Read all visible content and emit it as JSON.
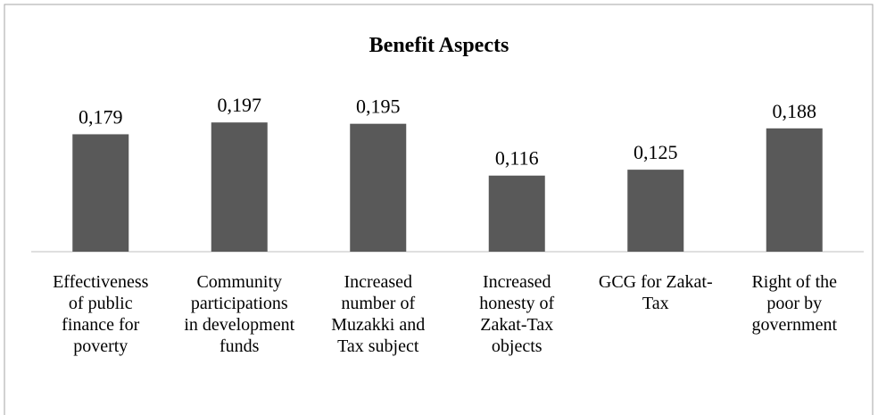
{
  "chart_data": {
    "type": "bar",
    "title": "Benefit Aspects",
    "categories": [
      "Effectiveness of public finance for poverty",
      "Community participations in development funds",
      "Increased number of Muzakki and Tax subject",
      "Increased honesty of Zakat-Tax objects",
      "GCG for Zakat-Tax",
      "Right of the poor by government"
    ],
    "values": [
      0.179,
      0.197,
      0.195,
      0.116,
      0.125,
      0.188
    ],
    "value_labels": [
      "0,179",
      "0,197",
      "0,195",
      "0,116",
      "0,125",
      "0,188"
    ],
    "color": "#595959",
    "ylim": [
      0,
      0.2
    ]
  }
}
